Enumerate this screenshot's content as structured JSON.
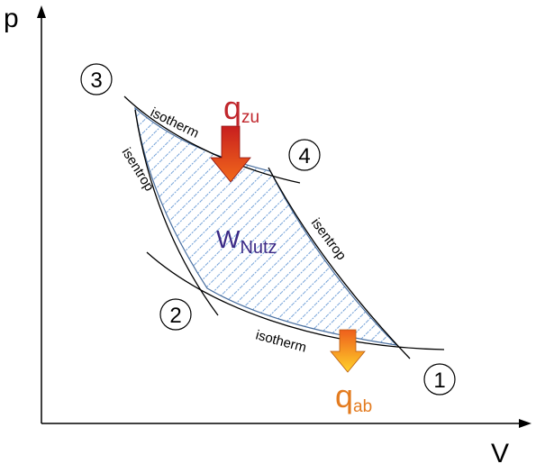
{
  "axes": {
    "x_label": "V",
    "y_label": "p"
  },
  "states": {
    "s1": "1",
    "s2": "2",
    "s3": "3",
    "s4": "4"
  },
  "curve_labels": {
    "isotherm_top": "isotherm",
    "isotherm_bottom": "isotherm",
    "isentrop_left": "isentrop",
    "isentrop_right": "isentrop"
  },
  "work": {
    "symbol": "W",
    "subscript": "Nutz"
  },
  "heat_in": {
    "symbol": "q",
    "subscript": "zu"
  },
  "heat_out": {
    "symbol": "q",
    "subscript": "ab"
  },
  "colors": {
    "heat_in_text": "#c0262c",
    "heat_out_text": "#e37b1f",
    "work_text": "#3b2a86",
    "hatch": "#6b9cd6",
    "region_edge": "#4a6f9f"
  }
}
